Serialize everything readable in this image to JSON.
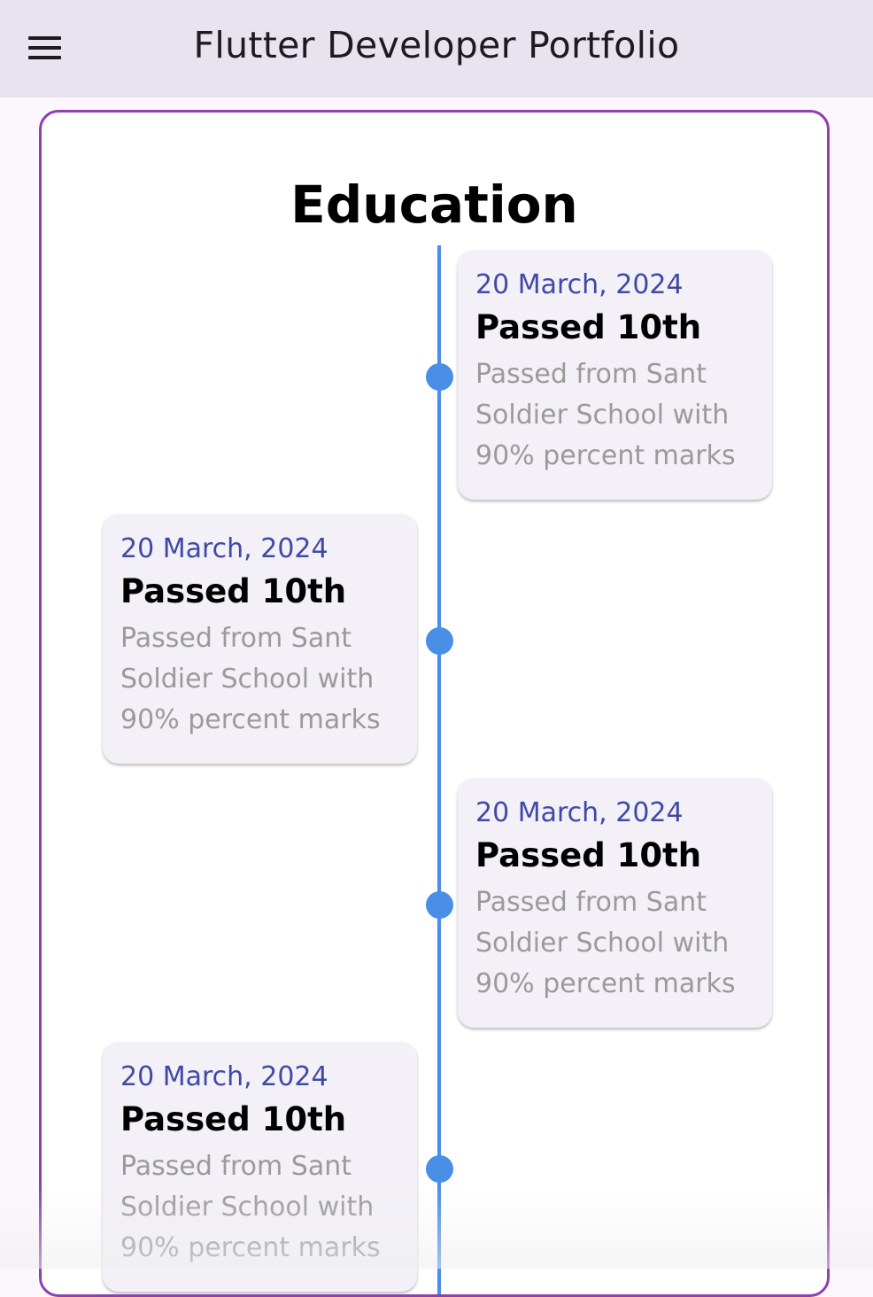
{
  "appbar": {
    "title": "Flutter Developer Portfolio",
    "menu_icon": "menu-icon"
  },
  "section": {
    "title": "Education"
  },
  "timeline": {
    "items": [
      {
        "date": "20 March, 2024",
        "title": "Passed 10th",
        "description": "Passed from Sant Soldier School with 90% percent marks",
        "side": "right"
      },
      {
        "date": "20 March, 2024",
        "title": "Passed 10th",
        "description": "Passed from Sant Soldier School with 90% percent marks",
        "side": "left"
      },
      {
        "date": "20 March, 2024",
        "title": "Passed 10th",
        "description": "Passed from Sant Soldier School with 90% percent marks",
        "side": "right"
      },
      {
        "date": "20 March, 2024",
        "title": "Passed 10th",
        "description": "Passed from Sant Soldier School with 90% percent marks",
        "side": "left"
      }
    ]
  },
  "colors": {
    "accent": "#4a8fe7",
    "border": "#8e3fb0",
    "date": "#3f4aa6",
    "appbar_bg": "#e8e3ee"
  }
}
